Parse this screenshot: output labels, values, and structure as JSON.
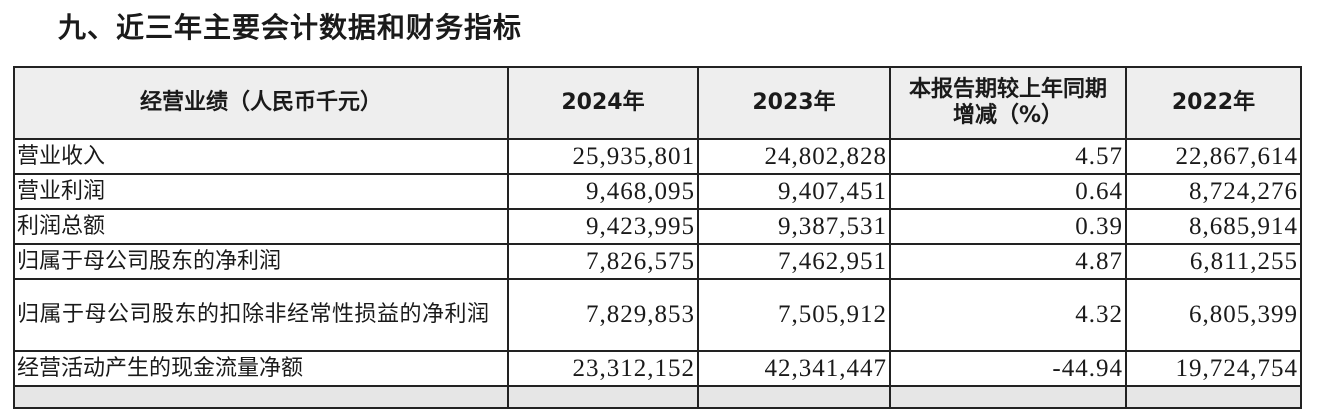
{
  "title": "九、近三年主要会计数据和财务指标",
  "table": {
    "headers": [
      "经营业绩（人民币千元）",
      "2024年",
      "2023年",
      "本报告期较上年同期增减（%）",
      "2022年"
    ],
    "rows": [
      {
        "label": "营业收入",
        "y2024": "25,935,801",
        "y2023": "24,802,828",
        "change": "4.57",
        "y2022": "22,867,614"
      },
      {
        "label": "营业利润",
        "y2024": "9,468,095",
        "y2023": "9,407,451",
        "change": "0.64",
        "y2022": "8,724,276"
      },
      {
        "label": "利润总额",
        "y2024": "9,423,995",
        "y2023": "9,387,531",
        "change": "0.39",
        "y2022": "8,685,914"
      },
      {
        "label": "归属于母公司股东的净利润",
        "y2024": "7,826,575",
        "y2023": "7,462,951",
        "change": "4.87",
        "y2022": "6,811,255"
      },
      {
        "label": "归属于母公司股东的扣除非经常性损益的净利润",
        "y2024": "7,829,853",
        "y2023": "7,505,912",
        "change": "4.32",
        "y2022": "6,805,399"
      },
      {
        "label": "经营活动产生的现金流量净额",
        "y2024": "23,312,152",
        "y2023": "42,341,447",
        "change": "-44.94",
        "y2022": "19,724,754"
      }
    ]
  }
}
